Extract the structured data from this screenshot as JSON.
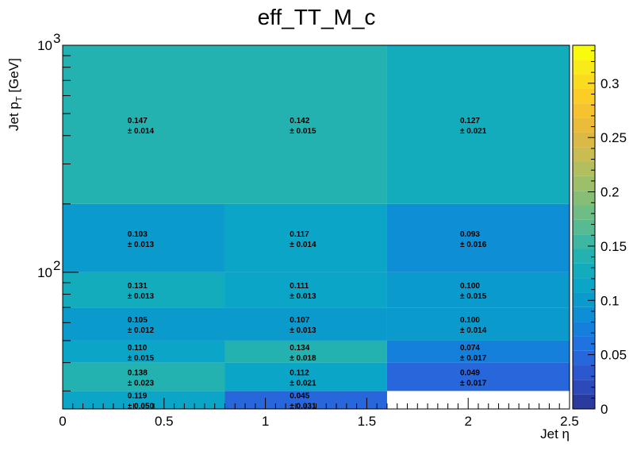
{
  "chart_data": {
    "type": "heatmap",
    "title": "eff_TT_M_c",
    "xlabel": "Jet η",
    "ylabel_main": "Jet p",
    "ylabel_sub": "T",
    "ylabel_unit": "[GeV]",
    "xlim": [
      0,
      2.5
    ],
    "ylim": [
      25,
      1000
    ],
    "ylog": true,
    "x_edges": [
      0,
      0.8,
      1.6,
      2.5
    ],
    "y_edges": [
      25,
      30,
      40,
      50,
      70,
      100,
      200,
      1000
    ],
    "x_ticks": [
      "0",
      "0.5",
      "1",
      "1.5",
      "2",
      "2.5"
    ],
    "y_ticks": [
      {
        "base": "10",
        "exp": "2",
        "value": 100
      },
      {
        "base": "10",
        "exp": "3",
        "value": 1000
      }
    ],
    "zlim": [
      0,
      0.335
    ],
    "z_ticks": [
      "0",
      "0.05",
      "0.1",
      "0.15",
      "0.2",
      "0.25",
      "0.3"
    ],
    "cells": [
      {
        "xbin": 0,
        "ybin": 0,
        "value": "0.119",
        "error": "± 0.050"
      },
      {
        "xbin": 1,
        "ybin": 0,
        "value": "0.045",
        "error": "± 0.031"
      },
      {
        "xbin": 0,
        "ybin": 1,
        "value": "0.138",
        "error": "± 0.023"
      },
      {
        "xbin": 1,
        "ybin": 1,
        "value": "0.112",
        "error": "± 0.021"
      },
      {
        "xbin": 2,
        "ybin": 1,
        "value": "0.049",
        "error": "± 0.017"
      },
      {
        "xbin": 0,
        "ybin": 2,
        "value": "0.110",
        "error": "± 0.015"
      },
      {
        "xbin": 1,
        "ybin": 2,
        "value": "0.134",
        "error": "± 0.018"
      },
      {
        "xbin": 2,
        "ybin": 2,
        "value": "0.074",
        "error": "± 0.017"
      },
      {
        "xbin": 0,
        "ybin": 3,
        "value": "0.105",
        "error": "± 0.012"
      },
      {
        "xbin": 1,
        "ybin": 3,
        "value": "0.107",
        "error": "± 0.013"
      },
      {
        "xbin": 2,
        "ybin": 3,
        "value": "0.100",
        "error": "± 0.014"
      },
      {
        "xbin": 0,
        "ybin": 4,
        "value": "0.131",
        "error": "± 0.013"
      },
      {
        "xbin": 1,
        "ybin": 4,
        "value": "0.111",
        "error": "± 0.013"
      },
      {
        "xbin": 2,
        "ybin": 4,
        "value": "0.100",
        "error": "± 0.015"
      },
      {
        "xbin": 0,
        "ybin": 5,
        "value": "0.103",
        "error": "± 0.013"
      },
      {
        "xbin": 1,
        "ybin": 5,
        "value": "0.117",
        "error": "± 0.014"
      },
      {
        "xbin": 2,
        "ybin": 5,
        "value": "0.093",
        "error": "± 0.016"
      },
      {
        "xbin": 0,
        "ybin": 6,
        "value": "0.147",
        "error": "± 0.014"
      },
      {
        "xbin": 1,
        "ybin": 6,
        "value": "0.142",
        "error": "± 0.015"
      },
      {
        "xbin": 2,
        "ybin": 6,
        "value": "0.127",
        "error": "± 0.021"
      }
    ],
    "palette": [
      "#2a3a9e",
      "#2c4ab9",
      "#2b58cf",
      "#2866dc",
      "#1f72e0",
      "#1580dc",
      "#0e8ed4",
      "#0a9acb",
      "#0aa5c7",
      "#13acbd",
      "#24b2b0",
      "#3db7a2",
      "#56ba92",
      "#6ebd84",
      "#86be76",
      "#9dbf69",
      "#b3be5e",
      "#c8bc53",
      "#dab947",
      "#eabc3a",
      "#f6c32e",
      "#fbcd25",
      "#fbdb1f",
      "#f9ea19",
      "#f9fb0e"
    ]
  }
}
